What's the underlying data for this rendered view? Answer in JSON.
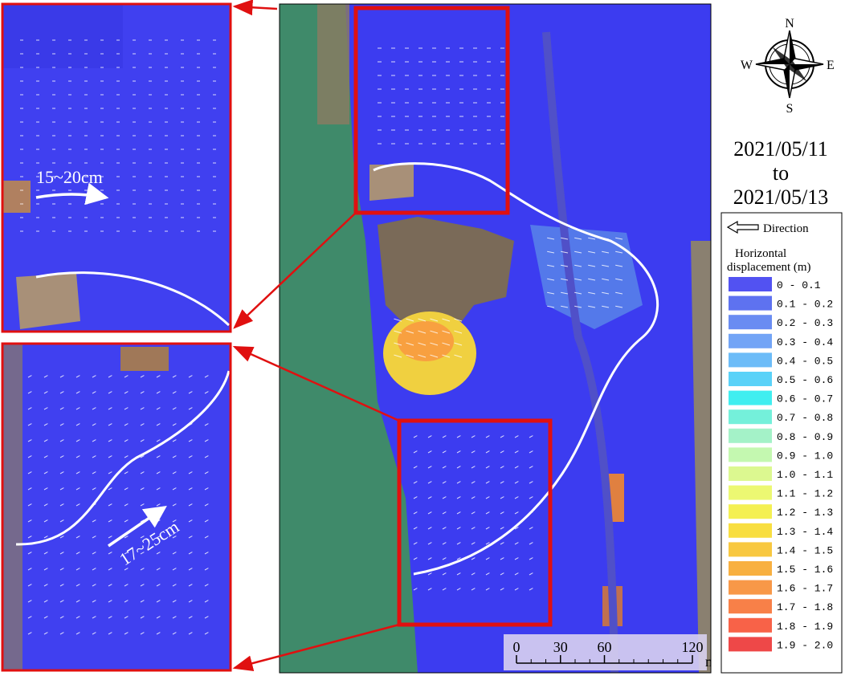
{
  "compass": {
    "north": "N",
    "east": "E",
    "south": "S",
    "west": "W"
  },
  "period": {
    "start": "2021/05/11",
    "connector": "to",
    "end": "2021/05/13"
  },
  "legend": {
    "direction": "Direction",
    "title_line1": "Horizontal",
    "title_line2": "displacement (m)",
    "classes": [
      {
        "label": "0 - 0.1",
        "color": "#5252f2"
      },
      {
        "label": "0.1 - 0.2",
        "color": "#5e72f0"
      },
      {
        "label": "0.2 - 0.3",
        "color": "#6a8cf2"
      },
      {
        "label": "0.3 - 0.4",
        "color": "#72a4f6"
      },
      {
        "label": "0.4 - 0.5",
        "color": "#6cbcf8"
      },
      {
        "label": "0.5 - 0.6",
        "color": "#5ad2f8"
      },
      {
        "label": "0.6 - 0.7",
        "color": "#40eef0"
      },
      {
        "label": "0.7 - 0.8",
        "color": "#74f0da"
      },
      {
        "label": "0.8 - 0.9",
        "color": "#a4f2c8"
      },
      {
        "label": "0.9 - 1.0",
        "color": "#c4f8b0"
      },
      {
        "label": "1.0 - 1.1",
        "color": "#dcf890"
      },
      {
        "label": "1.1 - 1.2",
        "color": "#ecf872"
      },
      {
        "label": "1.2 - 1.3",
        "color": "#f4f052"
      },
      {
        "label": "1.3 - 1.4",
        "color": "#f8de40"
      },
      {
        "label": "1.4 - 1.5",
        "color": "#f8c840"
      },
      {
        "label": "1.5 - 1.6",
        "color": "#f8b040"
      },
      {
        "label": "1.6 - 1.7",
        "color": "#f89848"
      },
      {
        "label": "1.7 - 1.8",
        "color": "#f88048"
      },
      {
        "label": "1.8 - 1.9",
        "color": "#f86248"
      },
      {
        "label": "1.9 - 2.0",
        "color": "#ee4848"
      }
    ]
  },
  "scale_bar": {
    "ticks": [
      0,
      30,
      60,
      120
    ],
    "unit": "m"
  },
  "insets": {
    "top": {
      "annotation": "15~20cm"
    },
    "bottom": {
      "annotation": "17~25cm"
    }
  }
}
